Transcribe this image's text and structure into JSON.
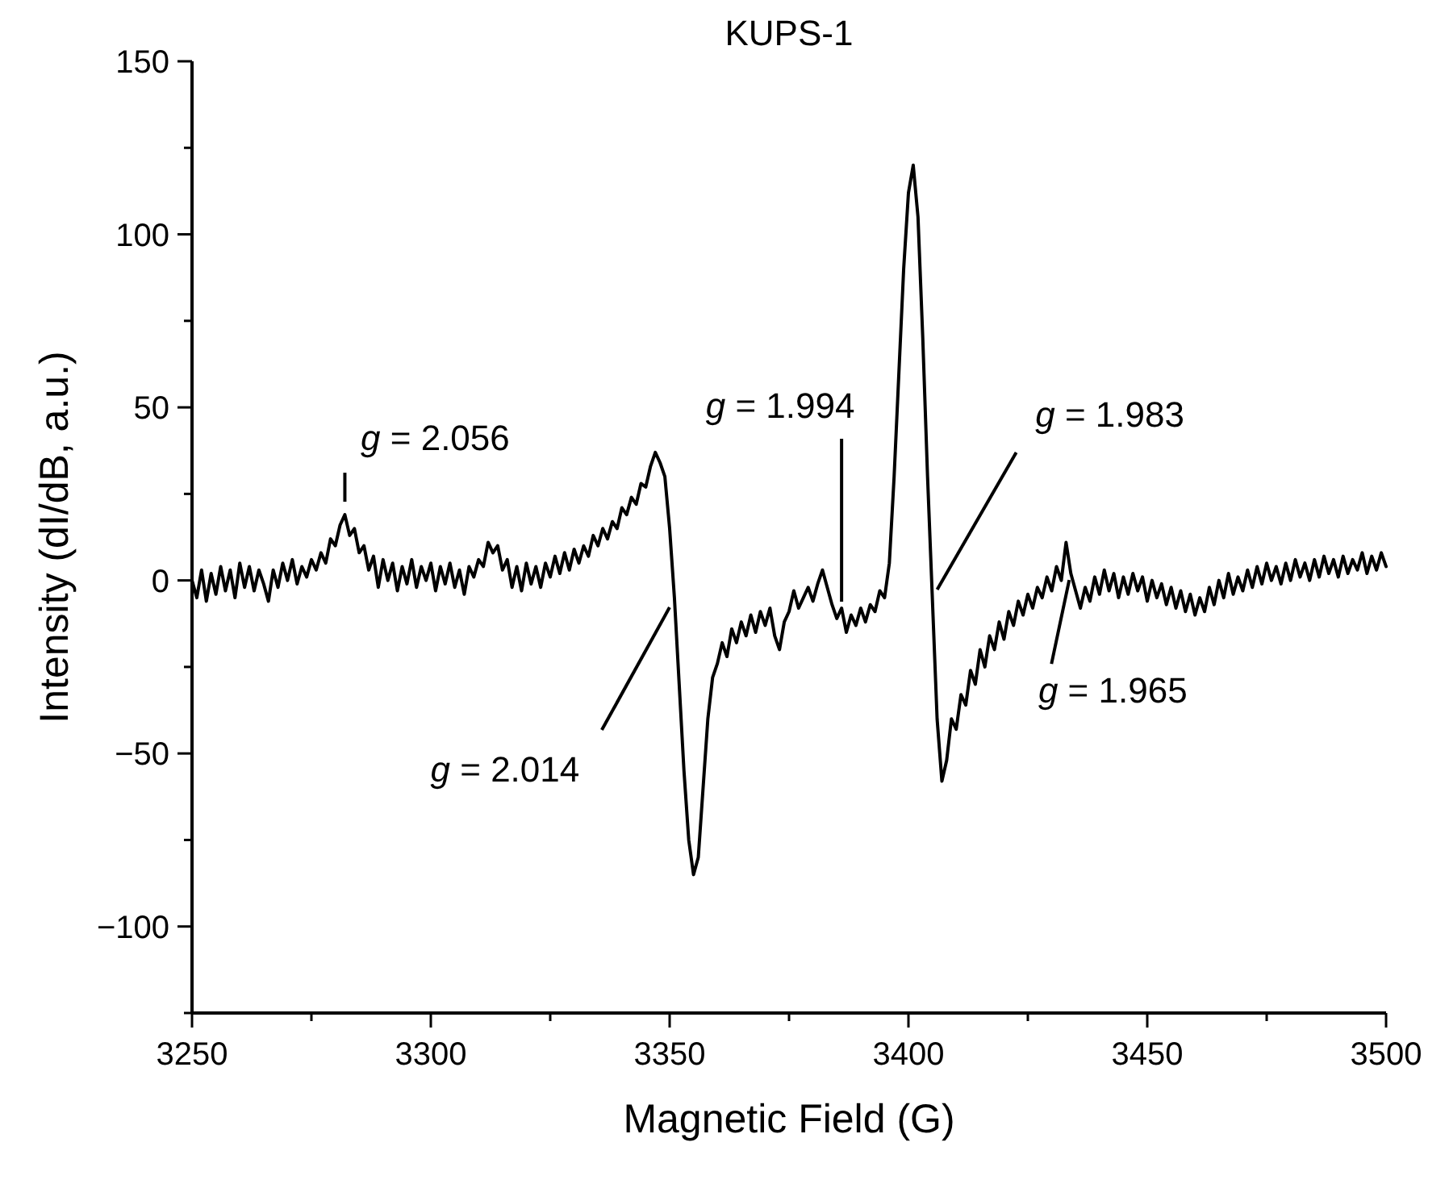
{
  "chart_data": {
    "type": "line",
    "title": "KUPS-1",
    "xlabel": "Magnetic Field (G)",
    "ylabel": "Intensity (dI/dB, a.u.)",
    "xlim": [
      3250,
      3500
    ],
    "xticks": [
      3250,
      {
        "value": 3275,
        "label": null
      },
      3300,
      {
        "value": 3325,
        "label": null
      },
      3350,
      {
        "value": 3375,
        "label": null
      },
      3400,
      {
        "value": 3425,
        "label": null
      },
      3450,
      {
        "value": 3475,
        "label": null
      },
      3500
    ],
    "ylim": [
      -125,
      150
    ],
    "yticks": [
      {
        "value": -125,
        "label": null
      },
      {
        "value": -100,
        "label": "−100"
      },
      {
        "value": -75,
        "label": null
      },
      {
        "value": -50,
        "label": "−50"
      },
      {
        "value": -25,
        "label": null
      },
      0,
      {
        "value": 25,
        "label": null
      },
      50,
      {
        "value": 75,
        "label": null
      },
      100,
      {
        "value": 125,
        "label": null
      },
      150
    ],
    "grid": false,
    "marker": "none",
    "line_style": "solid",
    "x": [
      3250,
      3251,
      3252,
      3253,
      3254,
      3255,
      3256,
      3257,
      3258,
      3259,
      3260,
      3261,
      3262,
      3263,
      3264,
      3265,
      3266,
      3267,
      3268,
      3269,
      3270,
      3271,
      3272,
      3273,
      3274,
      3275,
      3276,
      3277,
      3278,
      3279,
      3280,
      3281,
      3282,
      3283,
      3284,
      3285,
      3286,
      3287,
      3288,
      3289,
      3290,
      3291,
      3292,
      3293,
      3294,
      3295,
      3296,
      3297,
      3298,
      3299,
      3300,
      3301,
      3302,
      3303,
      3304,
      3305,
      3306,
      3307,
      3308,
      3309,
      3310,
      3311,
      3312,
      3313,
      3314,
      3315,
      3316,
      3317,
      3318,
      3319,
      3320,
      3321,
      3322,
      3323,
      3324,
      3325,
      3326,
      3327,
      3328,
      3329,
      3330,
      3331,
      3332,
      3333,
      3334,
      3335,
      3336,
      3337,
      3338,
      3339,
      3340,
      3341,
      3342,
      3343,
      3344,
      3345,
      3346,
      3347,
      3348,
      3349,
      3350,
      3351,
      3352,
      3353,
      3354,
      3355,
      3356,
      3357,
      3358,
      3359,
      3360,
      3361,
      3362,
      3363,
      3364,
      3365,
      3366,
      3367,
      3368,
      3369,
      3370,
      3371,
      3372,
      3373,
      3374,
      3375,
      3376,
      3377,
      3378,
      3379,
      3380,
      3381,
      3382,
      3383,
      3384,
      3385,
      3386,
      3387,
      3388,
      3389,
      3390,
      3391,
      3392,
      3393,
      3394,
      3395,
      3396,
      3397,
      3398,
      3399,
      3400,
      3401,
      3402,
      3403,
      3404,
      3405,
      3406,
      3407,
      3408,
      3409,
      3410,
      3411,
      3412,
      3413,
      3414,
      3415,
      3416,
      3417,
      3418,
      3419,
      3420,
      3421,
      3422,
      3423,
      3424,
      3425,
      3426,
      3427,
      3428,
      3429,
      3430,
      3431,
      3432,
      3433,
      3434,
      3435,
      3436,
      3437,
      3438,
      3439,
      3440,
      3441,
      3442,
      3443,
      3444,
      3445,
      3446,
      3447,
      3448,
      3449,
      3450,
      3451,
      3452,
      3453,
      3454,
      3455,
      3456,
      3457,
      3458,
      3459,
      3460,
      3461,
      3462,
      3463,
      3464,
      3465,
      3466,
      3467,
      3468,
      3469,
      3470,
      3471,
      3472,
      3473,
      3474,
      3475,
      3476,
      3477,
      3478,
      3479,
      3480,
      3481,
      3482,
      3483,
      3484,
      3485,
      3486,
      3487,
      3488,
      3489,
      3490,
      3491,
      3492,
      3493,
      3494,
      3495,
      3496,
      3497,
      3498,
      3499,
      3500
    ],
    "series": [
      {
        "color": "#000000",
        "values": [
          0,
          -5,
          3,
          -6,
          2,
          -4,
          4,
          -3,
          3,
          -5,
          5,
          -2,
          4,
          -3,
          3,
          -1,
          -6,
          3,
          -2,
          5,
          0,
          6,
          -1,
          4,
          1,
          6,
          3,
          8,
          5,
          12,
          10,
          16,
          19,
          13,
          15,
          8,
          10,
          3,
          7,
          -2,
          6,
          0,
          5,
          -3,
          4,
          -1,
          6,
          -2,
          4,
          0,
          5,
          -3,
          4,
          -1,
          5,
          -2,
          3,
          -4,
          4,
          1,
          6,
          4,
          11,
          8,
          10,
          3,
          6,
          -2,
          4,
          -3,
          5,
          -1,
          4,
          -2,
          5,
          1,
          7,
          2,
          8,
          3,
          9,
          5,
          10,
          7,
          13,
          10,
          15,
          12,
          17,
          15,
          21,
          19,
          24,
          22,
          28,
          27,
          33,
          37,
          34,
          30,
          15,
          -5,
          -30,
          -55,
          -75,
          -85,
          -80,
          -60,
          -40,
          -28,
          -24,
          -18,
          -22,
          -14,
          -18,
          -12,
          -16,
          -10,
          -15,
          -9,
          -13,
          -8,
          -16,
          -20,
          -12,
          -9,
          -3,
          -8,
          -5,
          -2,
          -6,
          -1,
          3,
          -2,
          -7,
          -11,
          -8,
          -15,
          -10,
          -13,
          -8,
          -12,
          -7,
          -9,
          -3,
          -5,
          5,
          30,
          60,
          90,
          112,
          120,
          105,
          70,
          30,
          -5,
          -40,
          -58,
          -52,
          -40,
          -43,
          -33,
          -36,
          -26,
          -30,
          -20,
          -25,
          -16,
          -20,
          -12,
          -17,
          -9,
          -13,
          -6,
          -10,
          -4,
          -8,
          -2,
          -5,
          1,
          -3,
          4,
          0,
          11,
          2,
          -3,
          -8,
          -2,
          -6,
          1,
          -4,
          3,
          -3,
          2,
          -5,
          1,
          -4,
          2,
          -3,
          1,
          -6,
          0,
          -5,
          -1,
          -7,
          -2,
          -8,
          -3,
          -9,
          -4,
          -10,
          -5,
          -9,
          -2,
          -7,
          0,
          -5,
          2,
          -4,
          1,
          -3,
          3,
          -2,
          4,
          -1,
          5,
          0,
          4,
          -1,
          5,
          0,
          6,
          1,
          5,
          0,
          6,
          1,
          7,
          2,
          6,
          1,
          7,
          2,
          6,
          3,
          8,
          2,
          7,
          3,
          8,
          4
        ]
      }
    ],
    "annotations": [
      {
        "text": "g = 2.056",
        "x": 3282,
        "y": 19
      },
      {
        "text": "g = 2.014",
        "x": 3351,
        "y": -5
      },
      {
        "text": "g = 1.994",
        "x": 3386,
        "y": -8
      },
      {
        "text": "g = 1.983",
        "x": 3405,
        "y": -5
      },
      {
        "text": "g = 1.965",
        "x": 3434,
        "y": 2
      }
    ]
  }
}
